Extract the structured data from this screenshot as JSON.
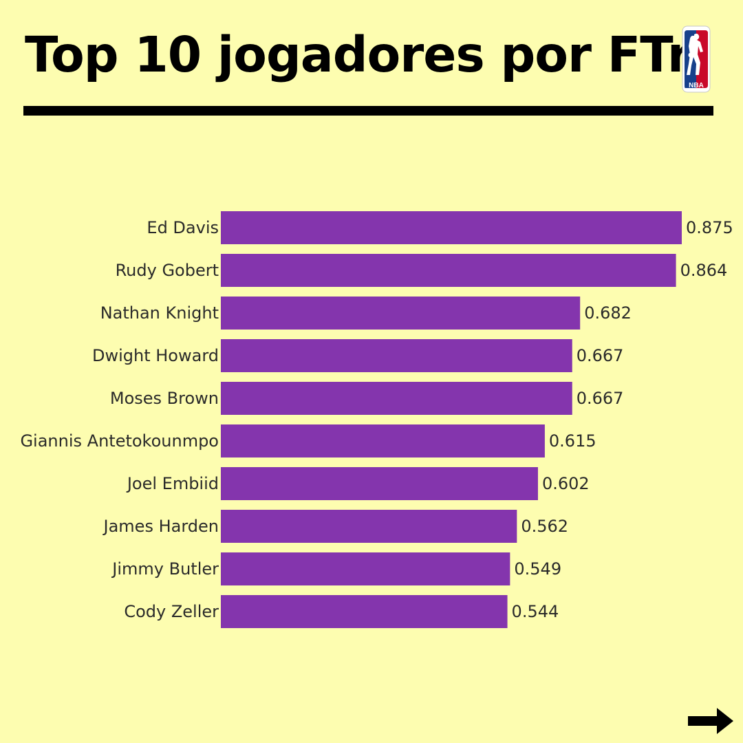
{
  "title": "Top 10 jogadores por FTr",
  "logo_text": "NBA",
  "colors": {
    "background": "#fdfdb0",
    "bar": "#8435ad",
    "text": "#2a2a2a",
    "logo_red": "#c9082a",
    "logo_blue": "#17408b"
  },
  "chart_data": {
    "type": "bar",
    "orientation": "horizontal",
    "title": "",
    "xlabel": "",
    "ylabel": "",
    "xlim": [
      0,
      0.875
    ],
    "grid": false,
    "categories": [
      "Ed Davis",
      "Rudy Gobert",
      "Nathan Knight",
      "Dwight Howard",
      "Moses Brown",
      "Giannis Antetokounmpo",
      "Joel Embiid",
      "James Harden",
      "Jimmy Butler",
      "Cody Zeller"
    ],
    "values": [
      0.875,
      0.864,
      0.682,
      0.667,
      0.667,
      0.615,
      0.602,
      0.562,
      0.549,
      0.544
    ],
    "value_labels": [
      "0.875",
      "0.864",
      "0.682",
      "0.667",
      "0.667",
      "0.615",
      "0.602",
      "0.562",
      "0.549",
      "0.544"
    ]
  },
  "navigation": {
    "next_icon": "right-arrow-icon"
  }
}
